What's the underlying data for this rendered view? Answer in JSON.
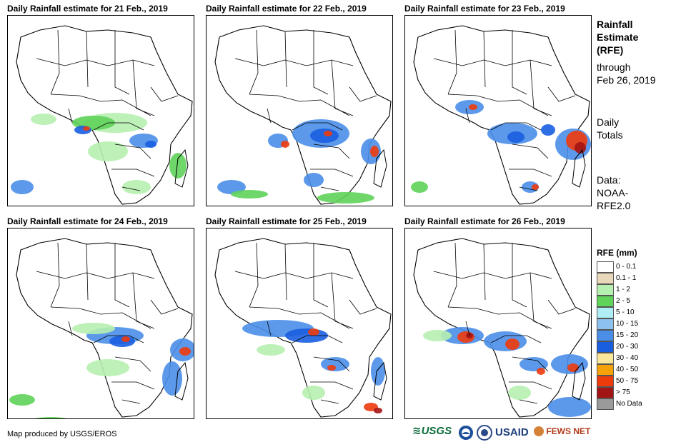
{
  "panels": [
    {
      "title": "Daily Rainfall estimate for 21 Feb., 2019"
    },
    {
      "title": "Daily Rainfall estimate for 22 Feb., 2019"
    },
    {
      "title": "Daily Rainfall estimate for 23 Feb., 2019"
    },
    {
      "title": "Daily Rainfall estimate for 24 Feb., 2019"
    },
    {
      "title": "Daily Rainfall estimate for 25 Feb., 2019"
    },
    {
      "title": "Daily Rainfall estimate for 26 Feb., 2019"
    }
  ],
  "sidebar": {
    "title_line1": "Rainfall",
    "title_line2": "Estimate",
    "title_line3": "(RFE)",
    "through_line1": "through",
    "through_line2": "Feb 26, 2019",
    "daily_line1": "Daily",
    "daily_line2": "Totals",
    "data_line1": "Data:",
    "data_line2": "NOAA-",
    "data_line3": "RFE2.0"
  },
  "legend": {
    "title": "RFE (mm)",
    "items": [
      {
        "label": "0 - 0.1",
        "color": "#ffffff"
      },
      {
        "label": "0.1 - 1",
        "color": "#e8d7b8"
      },
      {
        "label": "1 - 2",
        "color": "#b6f0b0"
      },
      {
        "label": "2 - 5",
        "color": "#5fd35a"
      },
      {
        "label": "5 - 10",
        "color": "#aeeef4"
      },
      {
        "label": "10 - 15",
        "color": "#8dc1ee"
      },
      {
        "label": "15 - 20",
        "color": "#4a8ee8"
      },
      {
        "label": "20 - 30",
        "color": "#1a5ee0"
      },
      {
        "label": "30 - 40",
        "color": "#fbe79c"
      },
      {
        "label": "40 - 50",
        "color": "#f5a20a"
      },
      {
        "label": "50 - 75",
        "color": "#ee3b0c"
      },
      {
        "label": "> 75",
        "color": "#a31414"
      },
      {
        "label": "No Data",
        "color": "#9a9a9a"
      }
    ]
  },
  "footer": {
    "credit": "Map produced by USGS/EROS",
    "logo_usgs": "USGS",
    "logo_usaid": "USAID",
    "logo_fewsnet": "FEWS NET"
  }
}
